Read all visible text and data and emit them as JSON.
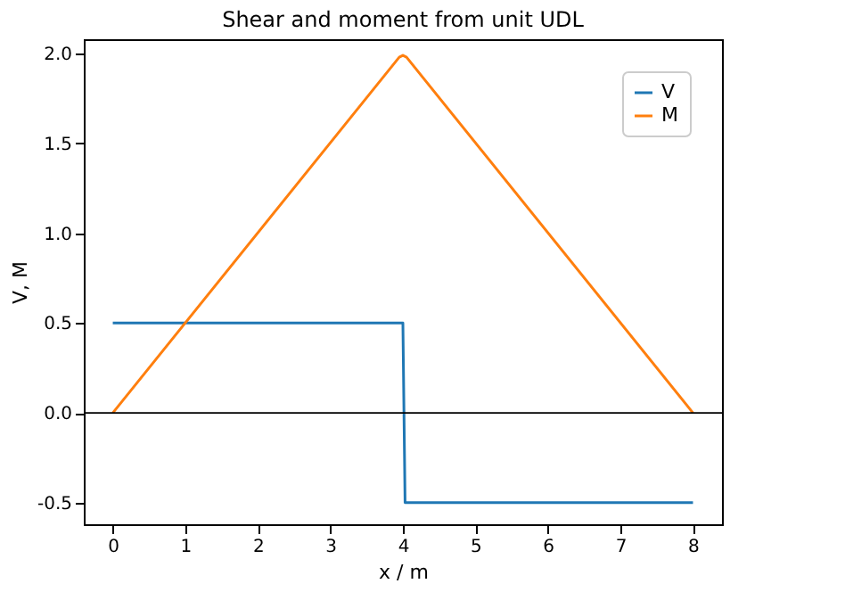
{
  "chart_data": {
    "type": "line",
    "title": "Shear and moment from unit UDL",
    "xlabel": "x / m",
    "ylabel": "V, M",
    "xlim": [
      -0.4,
      8.4
    ],
    "xticks": [
      0,
      1,
      2,
      3,
      4,
      5,
      6,
      7,
      8
    ],
    "ylim": [
      -0.62,
      2.08
    ],
    "yticks": [
      -0.5,
      {
        "value": 0,
        "label": "0.0"
      },
      0.5,
      {
        "value": 1,
        "label": "1.0"
      },
      1.5,
      {
        "value": 2,
        "label": "2.0"
      }
    ],
    "series": [
      {
        "name": "V",
        "color": "#1f77b4",
        "x": [
          0,
          4,
          4.03,
          8
        ],
        "values": [
          0.5,
          0.5,
          -0.5,
          -0.5
        ]
      },
      {
        "name": "M",
        "color": "#ff7f0e",
        "x": [
          0,
          3.95,
          4,
          4.05,
          8
        ],
        "values": [
          0,
          1.98,
          1.99,
          1.98,
          0
        ]
      }
    ],
    "ref_lines": [
      {
        "axis": "y",
        "value": 0,
        "color": "#000000"
      }
    ],
    "legend": "top right",
    "grid": false,
    "line_style": "solid",
    "marker": "none"
  }
}
